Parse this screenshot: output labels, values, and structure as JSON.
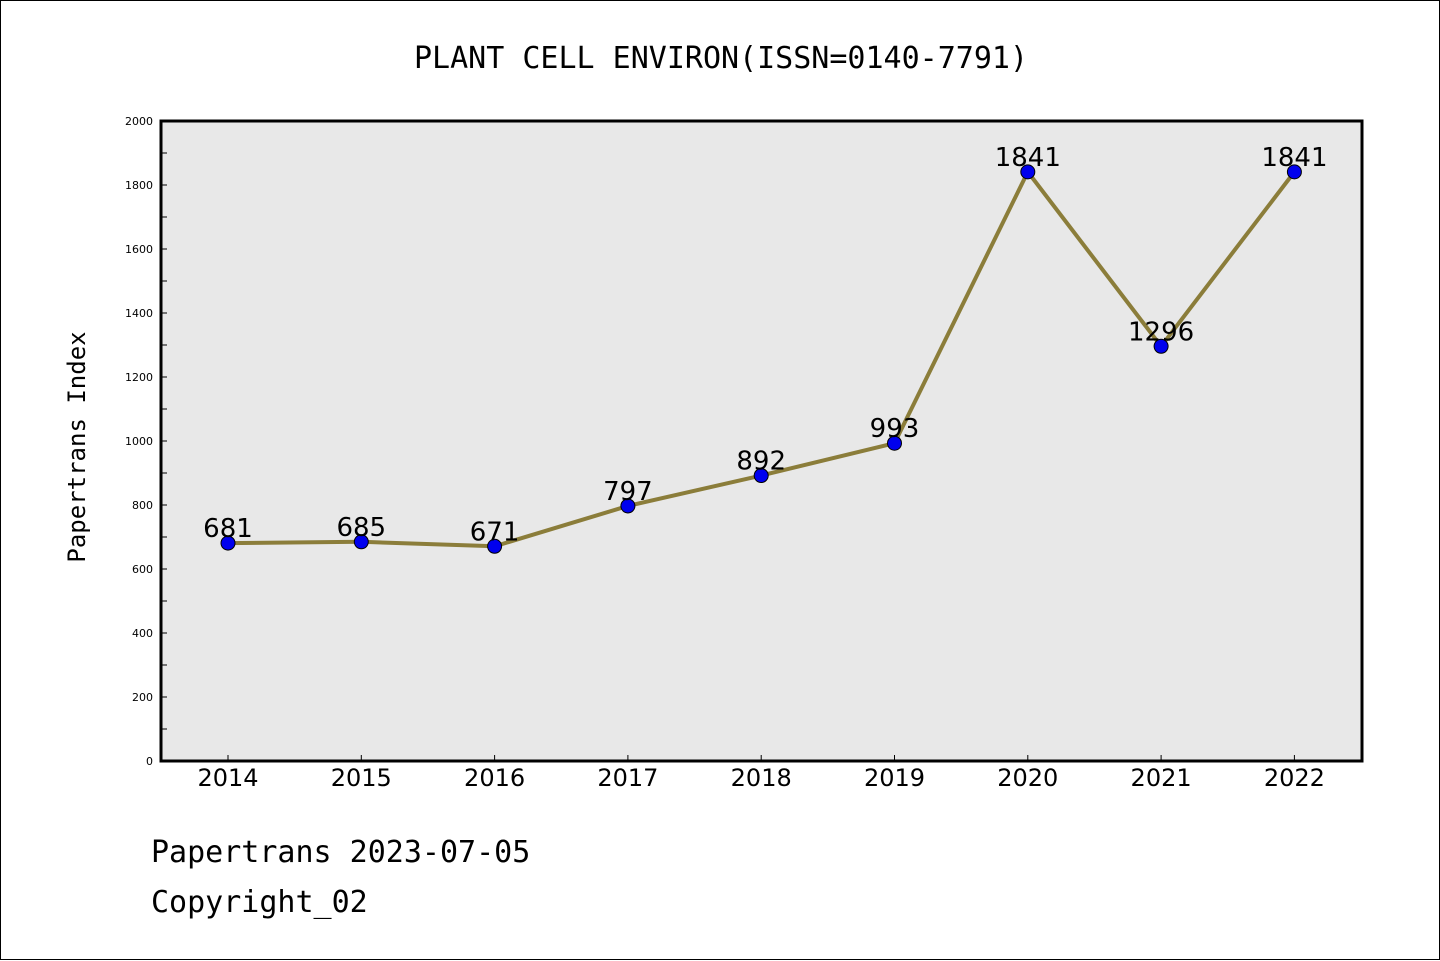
{
  "chart_data": {
    "type": "line",
    "title": "PLANT CELL ENVIRON(ISSN=0140-7791)",
    "xlabel": "",
    "ylabel": "Papertrans Index",
    "categories": [
      "2014",
      "2015",
      "2016",
      "2017",
      "2018",
      "2019",
      "2020",
      "2021",
      "2022"
    ],
    "values": [
      681,
      685,
      671,
      797,
      892,
      993,
      1841,
      1296,
      1841
    ],
    "ylim": [
      0,
      2000
    ],
    "yticks": [
      0,
      200,
      400,
      600,
      800,
      1000,
      1200,
      1400,
      1600,
      1800,
      2000
    ],
    "grid": false,
    "line_color": "#8B7D3A",
    "marker_color": "#0000EE",
    "plot_background": "#E8E8E8"
  },
  "footer": {
    "line1": "Papertrans 2023-07-05",
    "line2": "Copyright_02"
  }
}
